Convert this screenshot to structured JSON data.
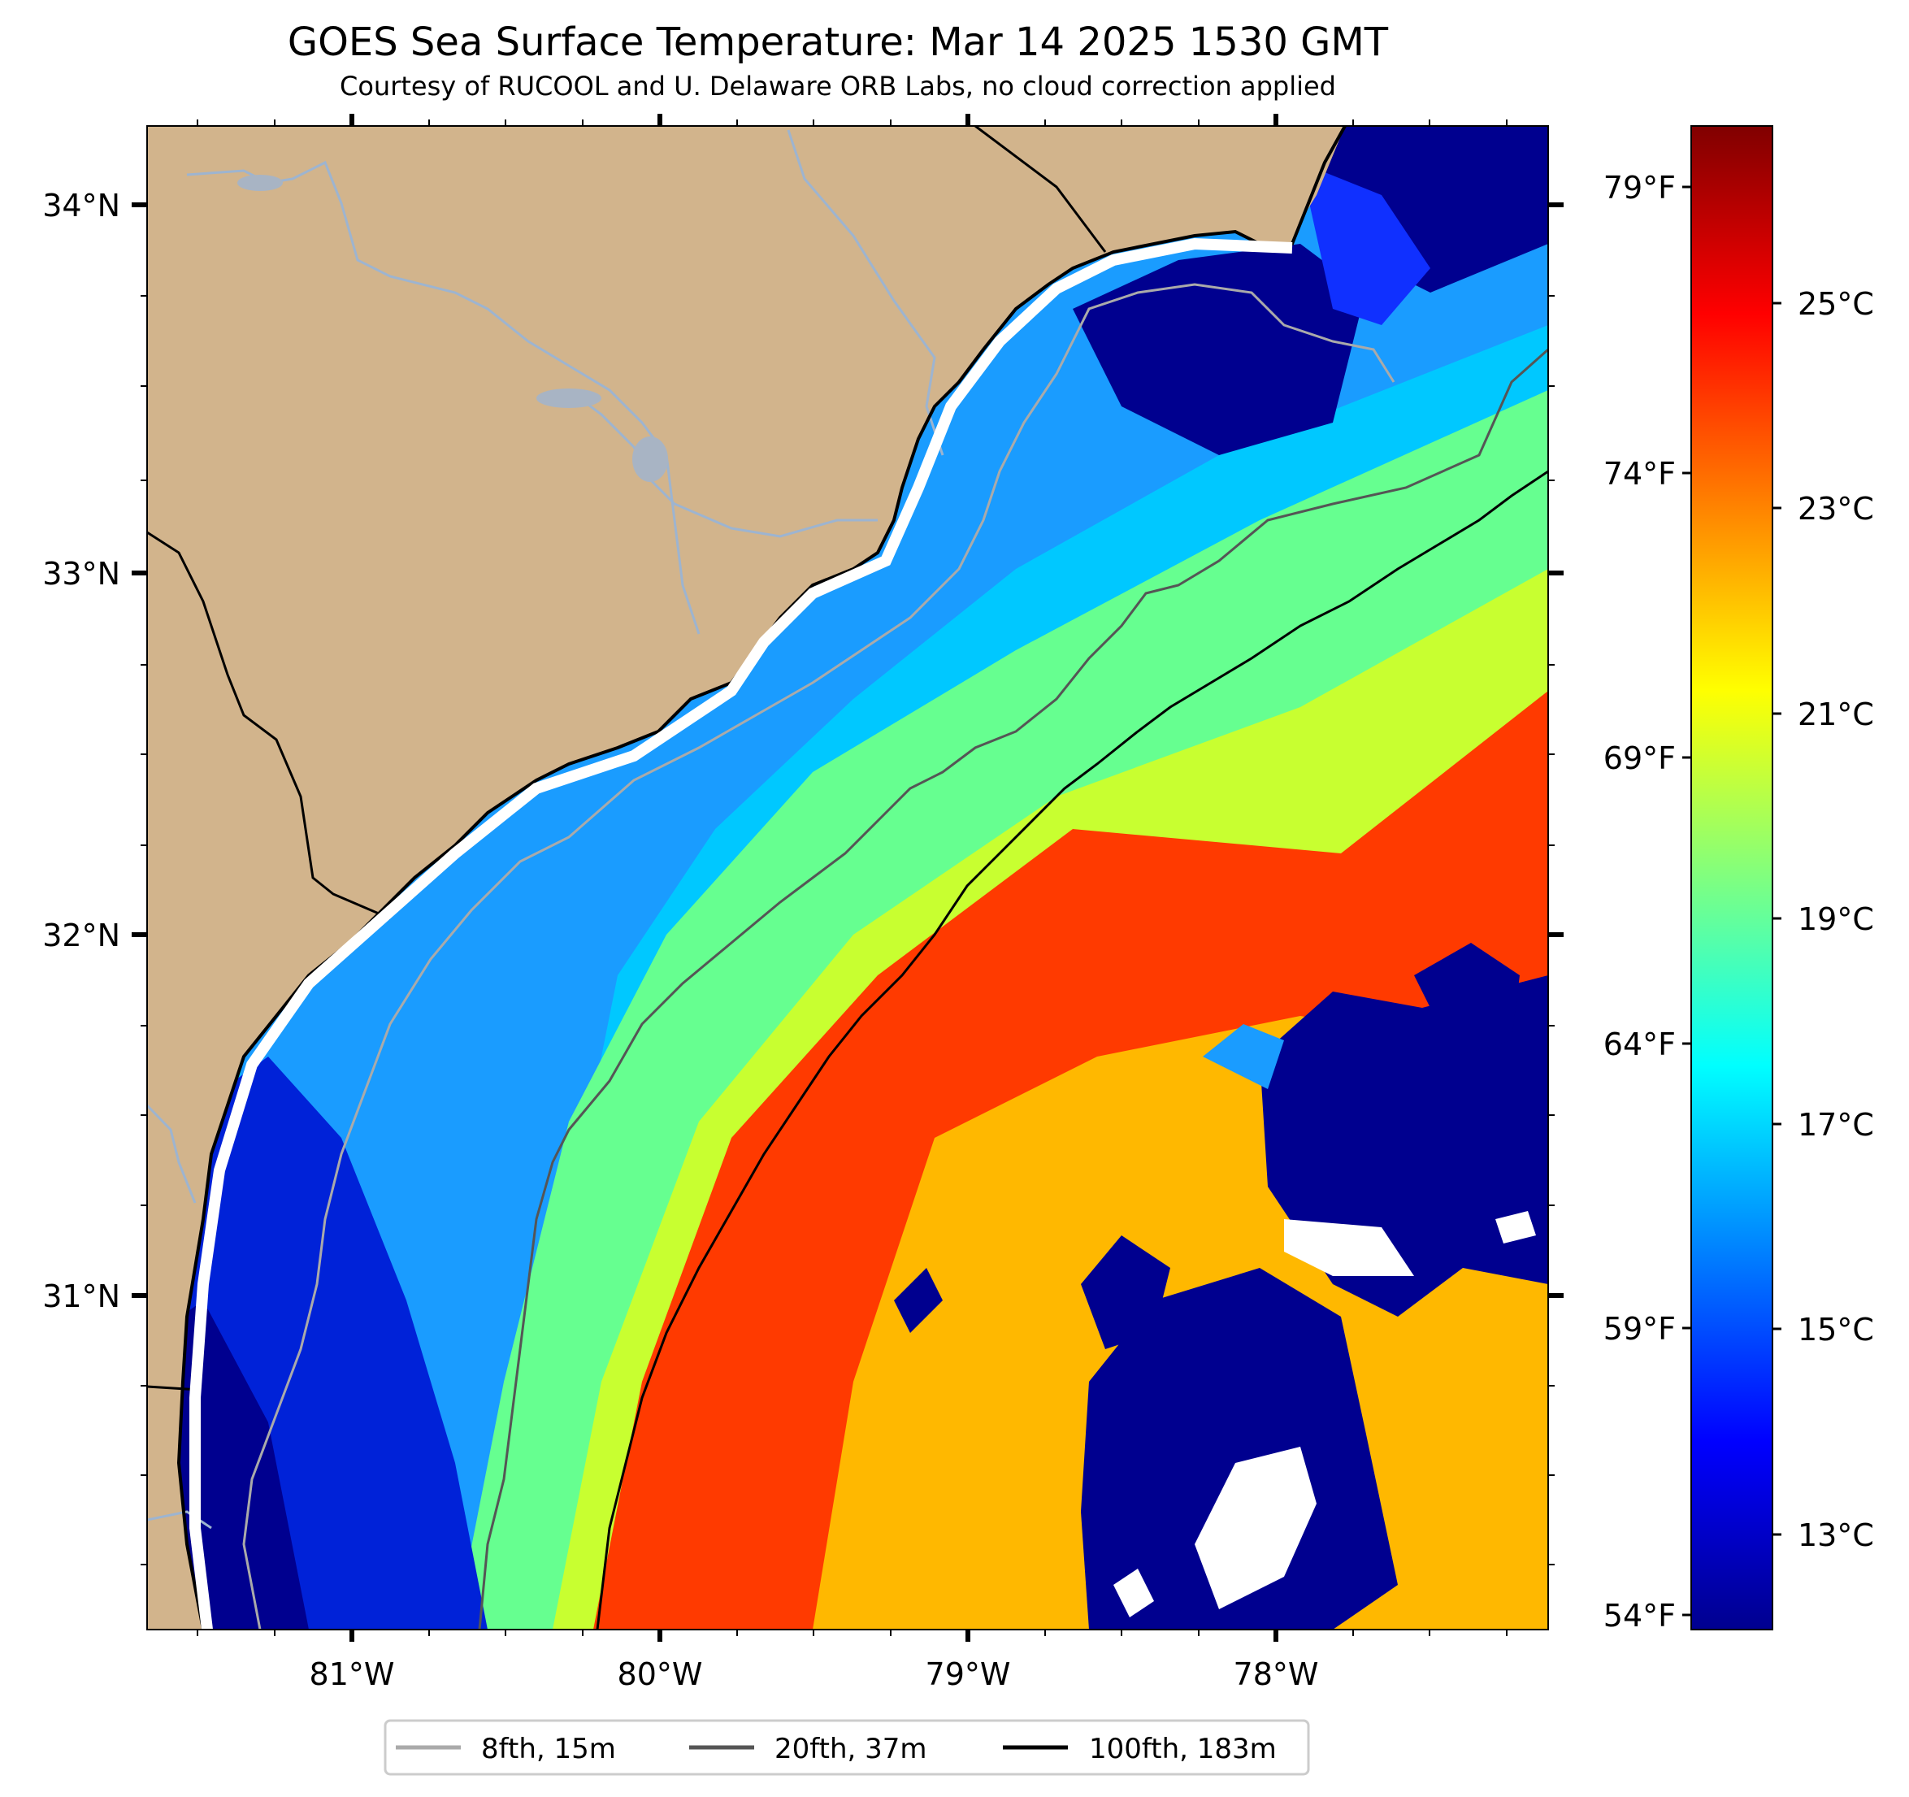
{
  "title": "GOES Sea Surface Temperature: Mar 14 2025 1530 GMT",
  "subtitle": "Courtesy of RUCOOL and U. Delaware ORB Labs, no cloud correction applied",
  "map": {
    "lat_labels": [
      "34°N",
      "33°N",
      "32°N",
      "31°N"
    ],
    "lon_labels": [
      "81°W",
      "80°W",
      "79°W",
      "78°W"
    ],
    "land_color": "#d2b48c",
    "coastline_color": "#000000",
    "river_color": "#9db4d0",
    "missing_data_color": "#ffffff"
  },
  "colorbar": {
    "colormap": "jet",
    "celsius_labels": [
      "25°C",
      "23°C",
      "21°C",
      "19°C",
      "17°C",
      "15°C",
      "13°C"
    ],
    "fahrenheit_labels": [
      "79°F",
      "74°F",
      "69°F",
      "64°F",
      "59°F",
      "54°F"
    ]
  },
  "legend": [
    {
      "label": "8fth, 15m",
      "color": "#aaaaaa"
    },
    {
      "label": "20fth, 37m",
      "color": "#555555"
    },
    {
      "label": "100fth, 183m",
      "color": "#000000"
    }
  ]
}
